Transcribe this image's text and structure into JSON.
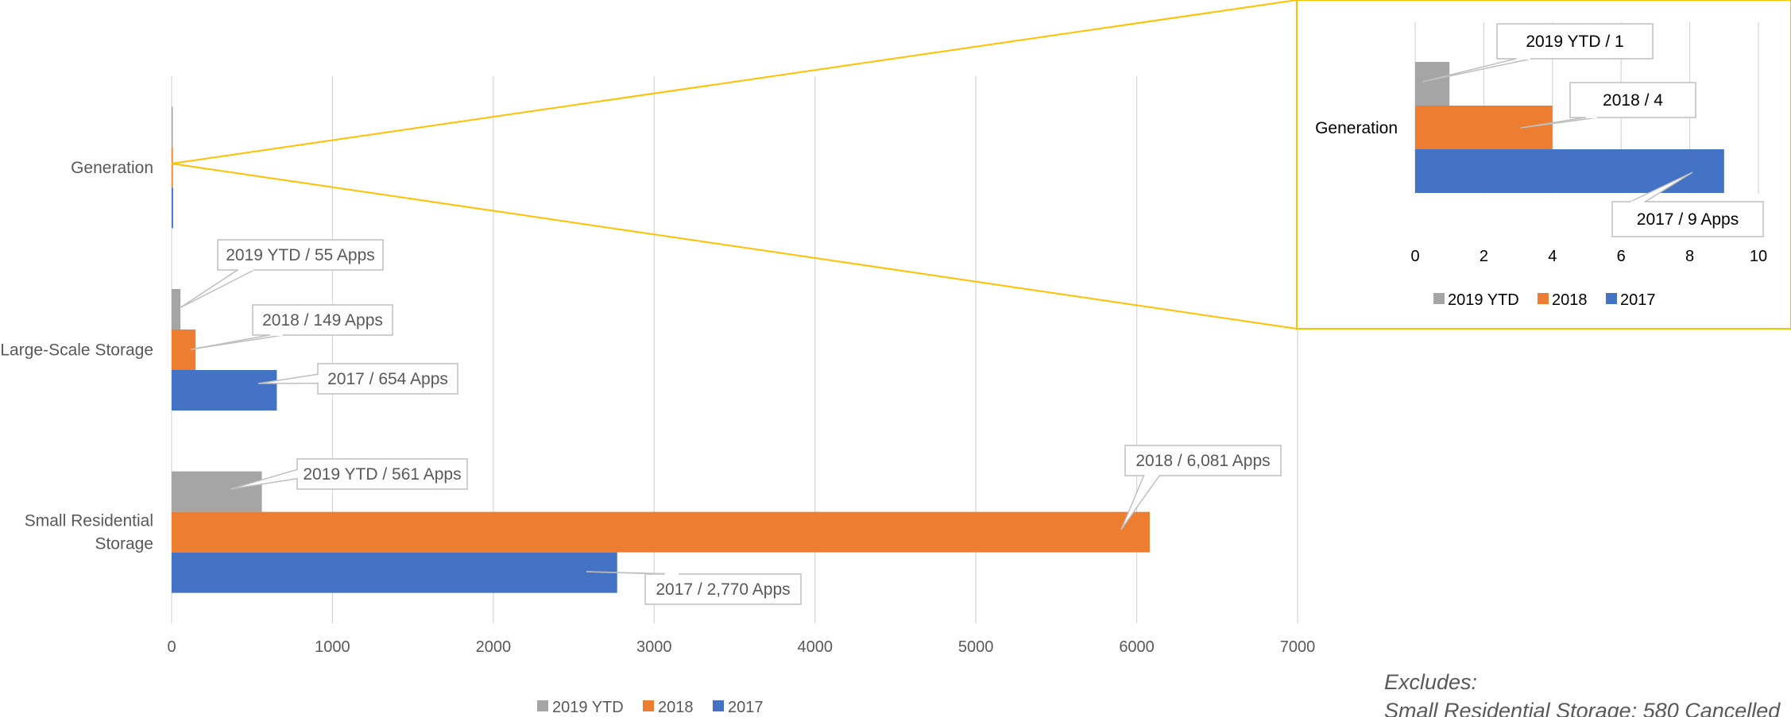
{
  "chart_data": [
    {
      "type": "bar",
      "orientation": "horizontal",
      "categories": [
        "Generation",
        "Large-Scale Storage",
        "Small Residential Storage"
      ],
      "series": [
        {
          "name": "2019 YTD",
          "color": "#A5A5A5",
          "values": [
            1,
            55,
            561
          ]
        },
        {
          "name": "2018",
          "color": "#ED7D31",
          "values": [
            4,
            149,
            6081
          ]
        },
        {
          "name": "2017",
          "color": "#4472C4",
          "values": [
            9,
            654,
            2770
          ]
        }
      ],
      "xlim": [
        0,
        7000
      ],
      "xticks": [
        "0",
        "1000",
        "2000",
        "3000",
        "4000",
        "5000",
        "6000",
        "7000"
      ],
      "grid": true,
      "legend": [
        "2019 YTD",
        "2018",
        "2017"
      ],
      "legend_position": "bottom",
      "data_labels": [
        "2019 YTD / 55 Apps",
        "2018 / 149 Apps",
        "2017 / 654 Apps",
        "2019 YTD / 561 Apps",
        "2018 / 6,081 Apps",
        "2017 / 2,770 Apps"
      ]
    },
    {
      "type": "bar",
      "orientation": "horizontal",
      "role": "zoom inset of Generation",
      "categories": [
        "Generation"
      ],
      "series": [
        {
          "name": "2019 YTD",
          "color": "#A5A5A5",
          "values": [
            1
          ]
        },
        {
          "name": "2018",
          "color": "#ED7D31",
          "values": [
            4
          ]
        },
        {
          "name": "2017",
          "color": "#4472C4",
          "values": [
            9
          ]
        }
      ],
      "xlim": [
        0,
        10
      ],
      "xticks": [
        "0",
        "2",
        "4",
        "6",
        "8",
        "10"
      ],
      "grid": true,
      "legend": [
        "2019 YTD",
        "2018",
        "2017"
      ],
      "legend_position": "bottom",
      "data_labels": [
        "2019 YTD /  1",
        "2018 /  4",
        "2017 /  9 Apps"
      ],
      "border_color": "#FFC000"
    }
  ],
  "notes": {
    "line1": "Excludes:",
    "line2": "Small Residential Storage:  580 Cancelled"
  }
}
